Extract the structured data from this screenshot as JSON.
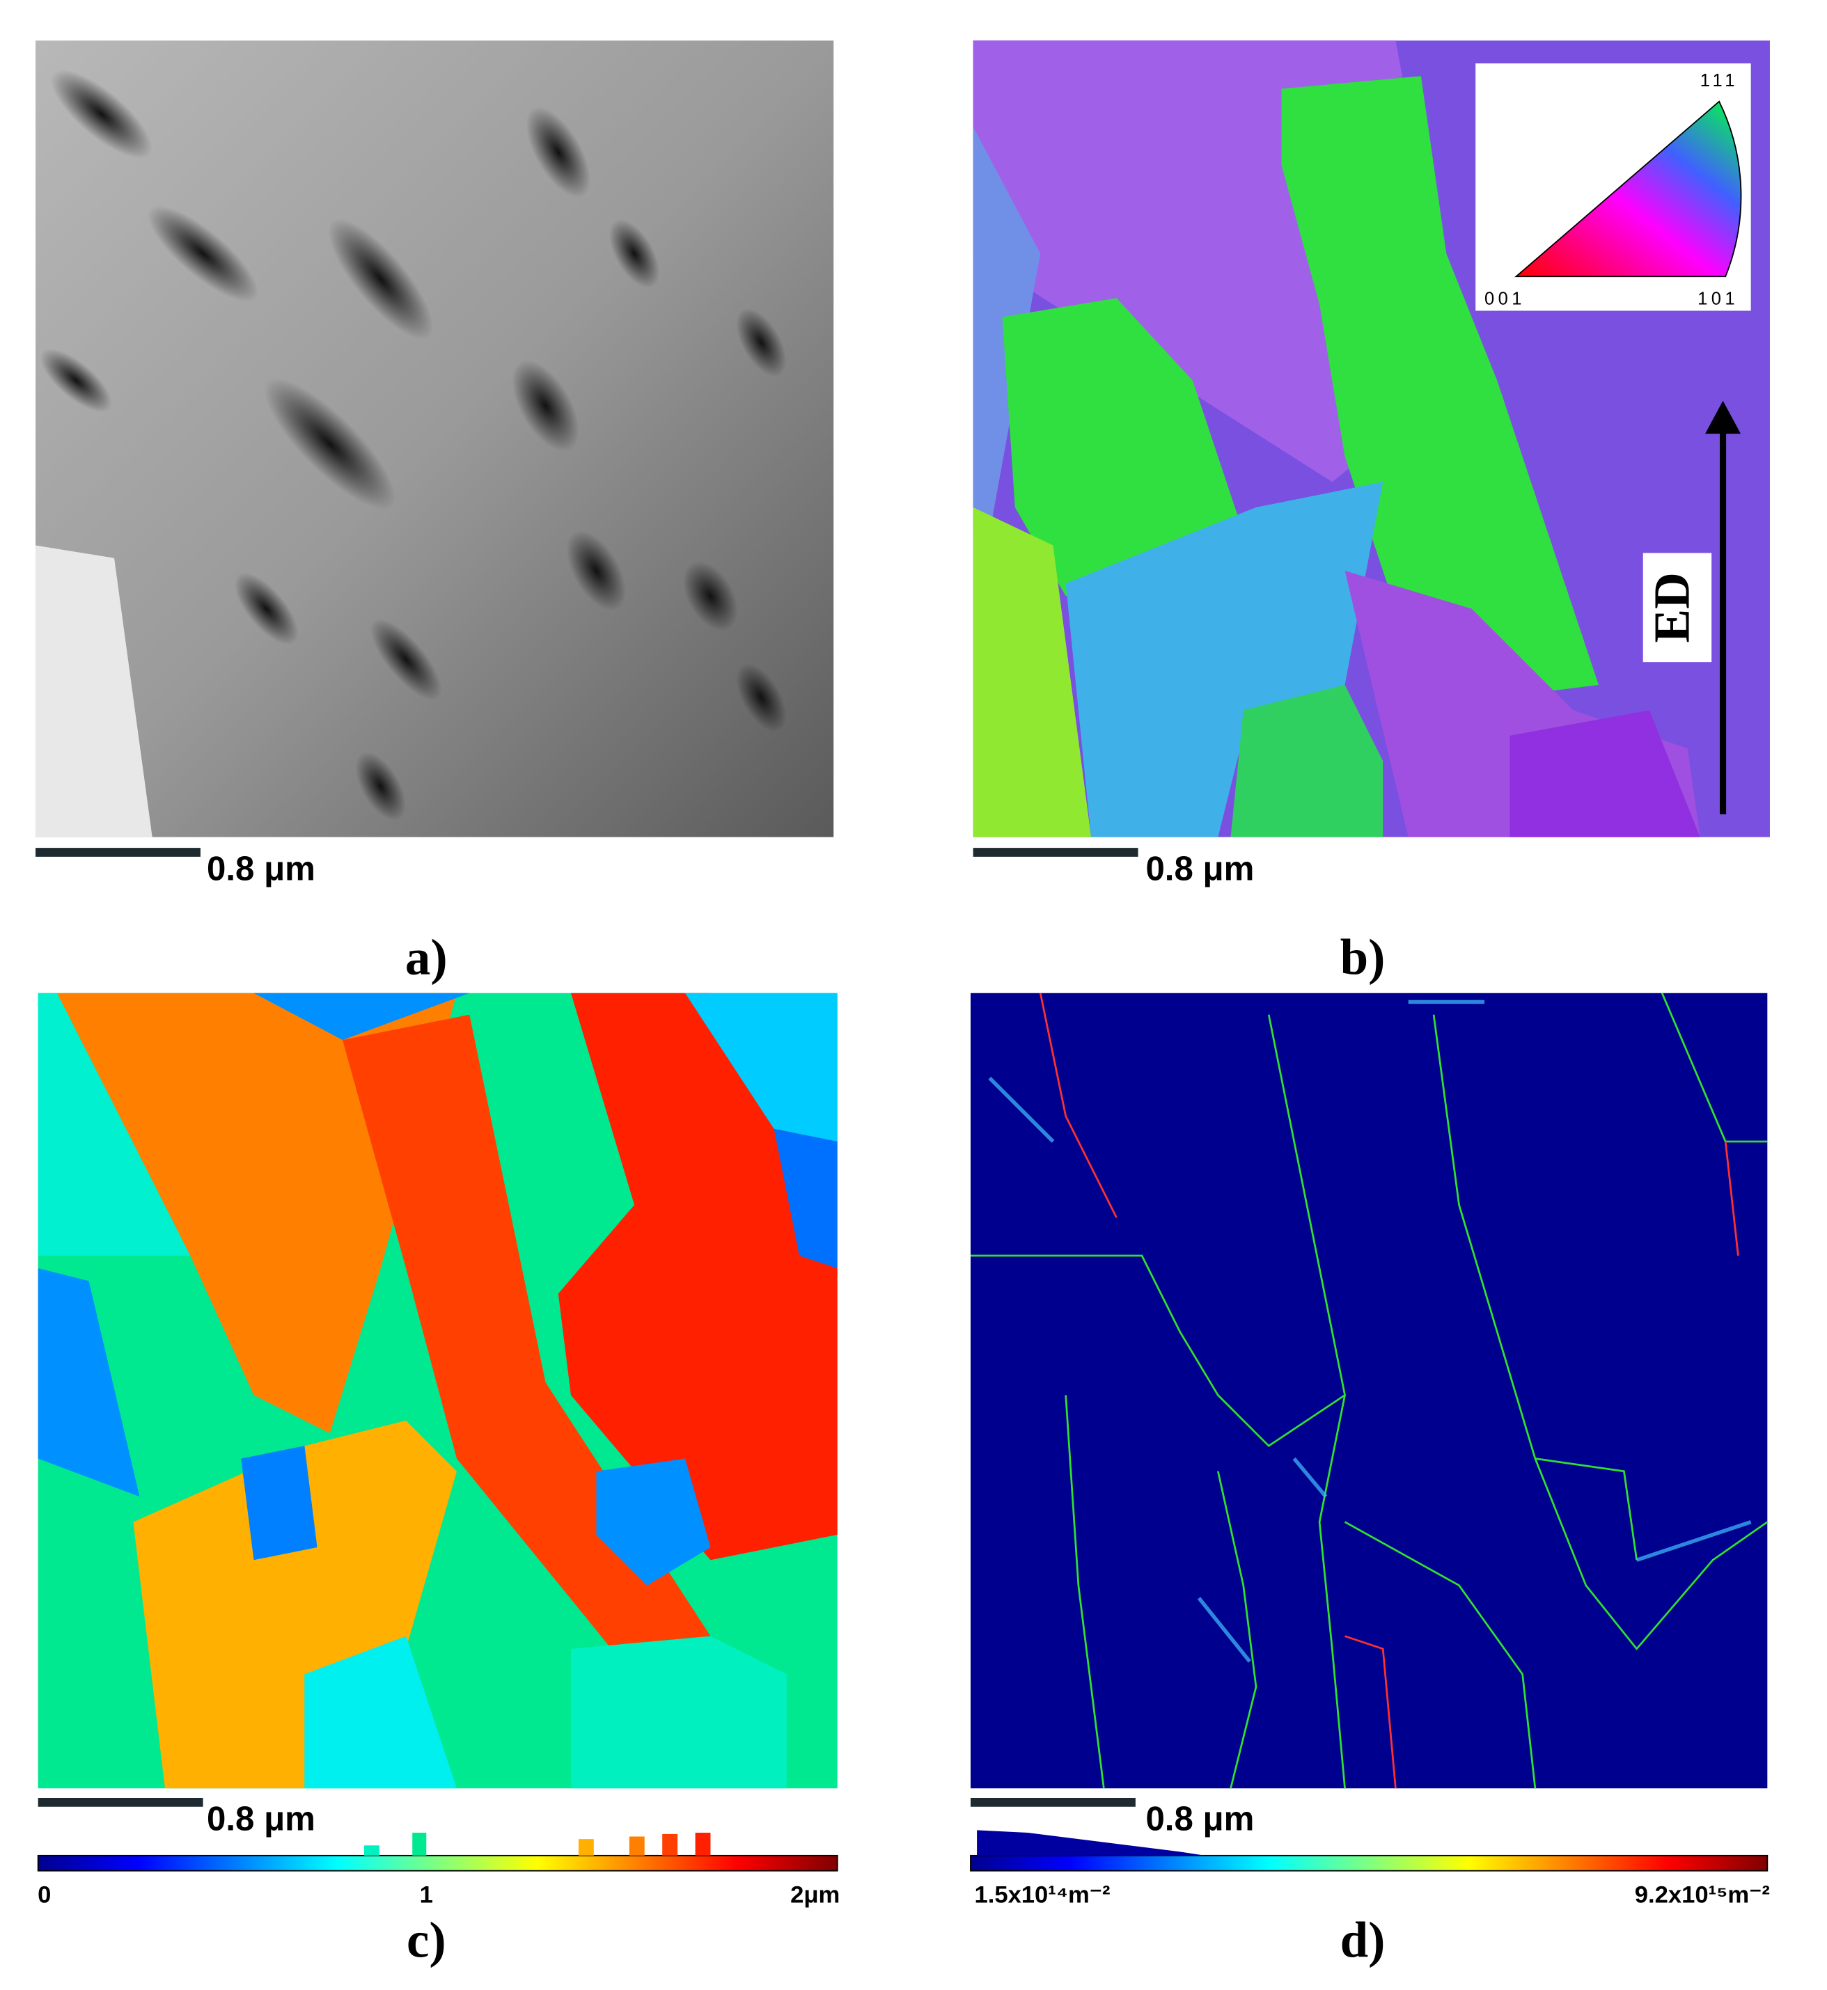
{
  "panels": [
    {
      "scale_bar": "0.8 μm",
      "label": "a)"
    },
    {
      "scale_bar": "0.8 μm",
      "label": "b)",
      "inset": {
        "top": "111",
        "left": "001",
        "right": "101"
      },
      "arrow_label": "ED"
    },
    {
      "scale_bar": "0.8 μm",
      "label": "c)",
      "colorbar": {
        "min": "0",
        "mid": "1",
        "max": "2μm"
      }
    },
    {
      "scale_bar": "0.8 μm",
      "label": "d)",
      "colorbar": {
        "min": "1.5x10¹⁴m⁻²",
        "max": "9.2x10¹⁵m⁻²"
      }
    }
  ]
}
